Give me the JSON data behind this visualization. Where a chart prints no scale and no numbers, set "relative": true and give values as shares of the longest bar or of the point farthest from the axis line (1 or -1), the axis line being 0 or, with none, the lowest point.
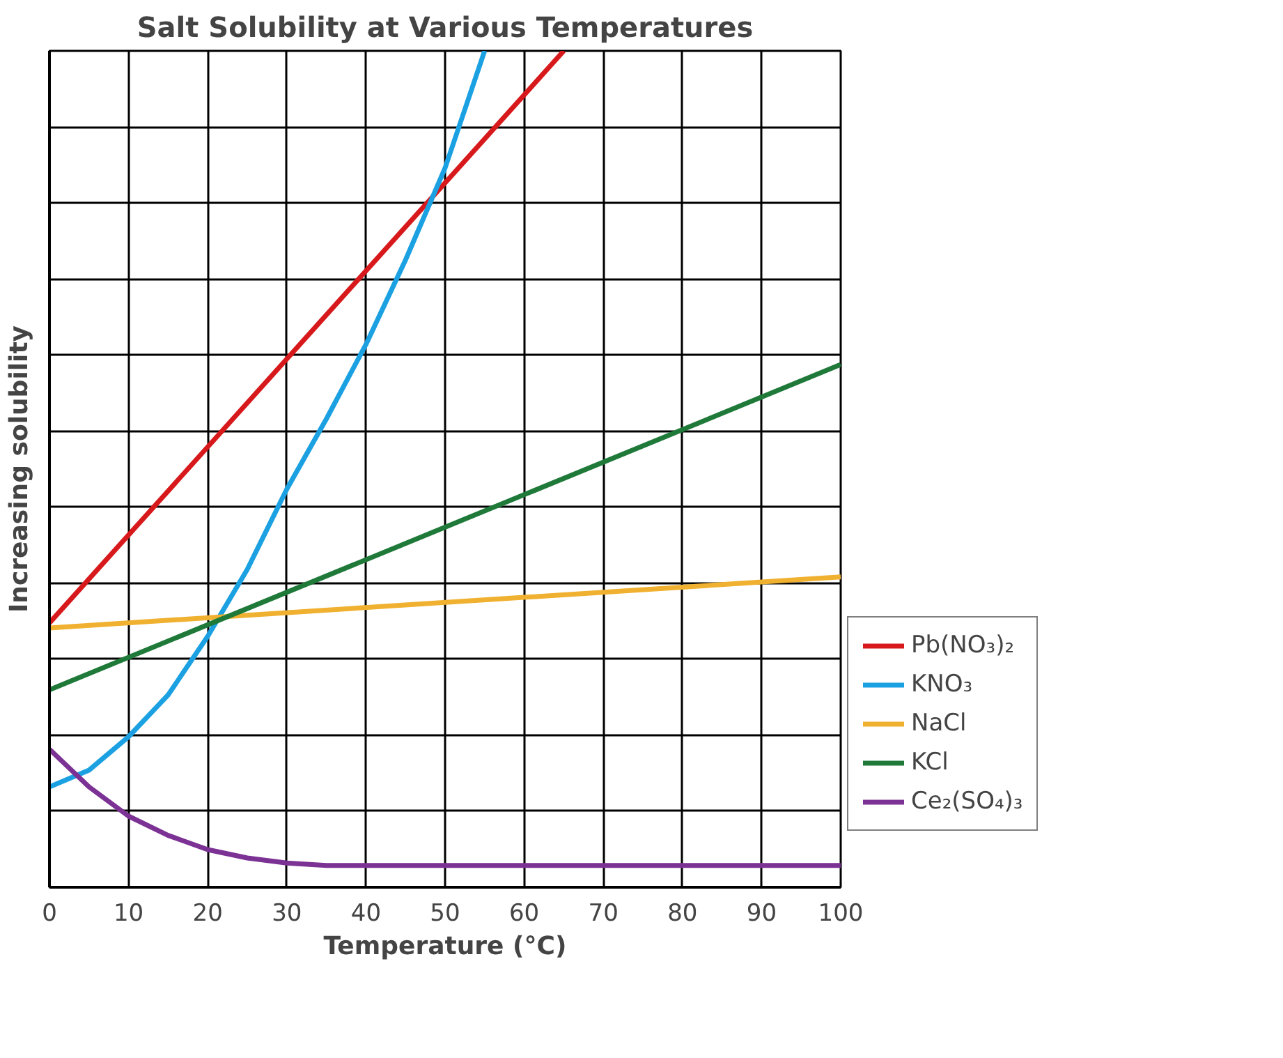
{
  "chart_data": {
    "type": "line",
    "title": "Salt Solubility at Various Temperatures",
    "xlabel": "Temperature (°C)",
    "ylabel": "Increasing solubility",
    "relative": true,
    "xlim": [
      0,
      100
    ],
    "xticks": [
      0,
      10,
      20,
      30,
      40,
      50,
      60,
      70,
      80,
      90,
      100
    ],
    "grid": true,
    "legend": "right",
    "marker": "none",
    "line_style": "solid",
    "series": [
      {
        "name": "Pb(NO₃)₂",
        "color": "#d7191c",
        "x": [
          0,
          65
        ],
        "values": [
          0.316,
          1.0
        ]
      },
      {
        "name": "KNO₃",
        "color": "#1ba1e2",
        "x": [
          0,
          5,
          10,
          15,
          20,
          25,
          30,
          35,
          40,
          45,
          50,
          55
        ],
        "values": [
          0.12,
          0.14,
          0.18,
          0.23,
          0.3,
          0.38,
          0.476,
          0.56,
          0.649,
          0.75,
          0.86,
          1.0
        ]
      },
      {
        "name": "NaCl",
        "color": "#f0b030",
        "x": [
          0,
          100
        ],
        "values": [
          0.31,
          0.371
        ]
      },
      {
        "name": "KCl",
        "color": "#1f7a3a",
        "x": [
          0,
          100
        ],
        "values": [
          0.236,
          0.625
        ]
      },
      {
        "name": "Ce₂(SO₄)₃",
        "color": "#7b3294",
        "x": [
          0,
          5,
          10,
          15,
          20,
          25,
          30,
          35,
          100
        ],
        "values": [
          0.165,
          0.12,
          0.085,
          0.062,
          0.045,
          0.035,
          0.029,
          0.026,
          0.026
        ]
      }
    ]
  }
}
